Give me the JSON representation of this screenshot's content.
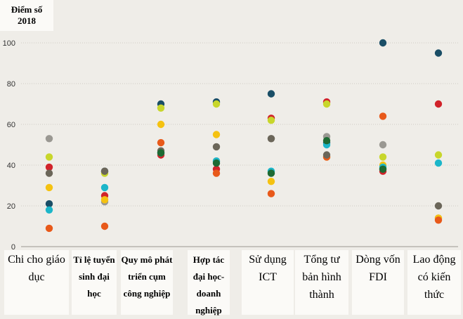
{
  "chart_data": {
    "type": "scatter",
    "ylabel_line1": "Điểm số",
    "ylabel_line2": "2018",
    "ylim": [
      0,
      100
    ],
    "yticks": [
      "0",
      "20",
      "40",
      "60",
      "80",
      "100"
    ],
    "grid": true,
    "categories": [
      "Chi cho giáo dục",
      "Tỉ lệ tuyển sinh đại học",
      "Quy mô phát triển cụm công nghiệp",
      "Hợp tác đại học-doanh nghiệp",
      "Sử dụng ICT",
      "Tổng tư bản hình thành",
      "Dòng vốn FDI",
      "Lao động có kiến thức"
    ],
    "series": [
      {
        "color": "#1a4e66",
        "values": [
          21,
          37,
          70,
          71,
          75,
          51,
          100,
          95
        ]
      },
      {
        "color": "#d1232a",
        "values": [
          39,
          25,
          45,
          38,
          63,
          71,
          37,
          70
        ]
      },
      {
        "color": "#9a9892",
        "values": [
          53,
          22,
          46,
          42,
          53,
          54,
          50,
          14
        ]
      },
      {
        "color": "#c8d62b",
        "values": [
          44,
          36,
          68,
          70,
          62,
          70,
          44,
          45
        ]
      },
      {
        "color": "#f5c211",
        "values": [
          29,
          23,
          60,
          55,
          32,
          44,
          40,
          14
        ]
      },
      {
        "color": "#1cb6c9",
        "values": [
          18,
          29,
          46,
          42,
          37,
          50,
          39,
          41
        ]
      },
      {
        "color": "#e8591a",
        "values": [
          9,
          10,
          51,
          36,
          26,
          44,
          64,
          13
        ]
      },
      {
        "color": "#6b6659",
        "values": [
          36,
          37,
          47,
          49,
          53,
          45,
          38,
          20
        ]
      },
      {
        "color": "#1e6a33",
        "values": [
          null,
          null,
          46,
          41,
          36,
          52,
          38,
          null
        ]
      }
    ]
  }
}
